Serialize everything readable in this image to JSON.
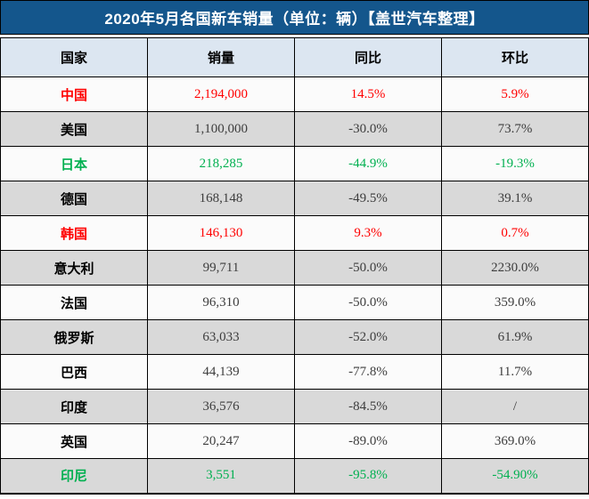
{
  "title": "2020年5月各国新车销量（单位：辆）【盖世汽车整理】",
  "colors": {
    "title_bar_bg": "#14568C",
    "title_text": "#FFFFFF",
    "header_bg": "#DCE6F1",
    "row_light_bg": "#FBFBFB",
    "row_alt_bg": "#D9D9D9",
    "highlight_red": "#FF0000",
    "highlight_green": "#00B050",
    "value_text": "#3D3D3D",
    "border": "#000000"
  },
  "chart_data": {
    "type": "table",
    "title": "2020年5月各国新车销量（单位：辆）【盖世汽车整理】",
    "columns": [
      "国家",
      "销量",
      "同比",
      "环比"
    ],
    "rows": [
      {
        "country": "中国",
        "sales": 2194000,
        "sales_display": "2,194,000",
        "yoy": "14.5%",
        "mom": "5.9%",
        "color": "red"
      },
      {
        "country": "美国",
        "sales": 1100000,
        "sales_display": "1,100,000",
        "yoy": "-30.0%",
        "mom": "73.7%",
        "color": "default"
      },
      {
        "country": "日本",
        "sales": 218285,
        "sales_display": "218,285",
        "yoy": "-44.9%",
        "mom": "-19.3%",
        "color": "green"
      },
      {
        "country": "德国",
        "sales": 168148,
        "sales_display": "168,148",
        "yoy": "-49.5%",
        "mom": "39.1%",
        "color": "default"
      },
      {
        "country": "韩国",
        "sales": 146130,
        "sales_display": "146,130",
        "yoy": "9.3%",
        "mom": "0.7%",
        "color": "red"
      },
      {
        "country": "意大利",
        "sales": 99711,
        "sales_display": "99,711",
        "yoy": "-50.0%",
        "mom": "2230.0%",
        "color": "default"
      },
      {
        "country": "法国",
        "sales": 96310,
        "sales_display": "96,310",
        "yoy": "-50.0%",
        "mom": "359.0%",
        "color": "default"
      },
      {
        "country": "俄罗斯",
        "sales": 63033,
        "sales_display": "63,033",
        "yoy": "-52.0%",
        "mom": "61.9%",
        "color": "default"
      },
      {
        "country": "巴西",
        "sales": 44139,
        "sales_display": "44,139",
        "yoy": "-77.8%",
        "mom": "11.7%",
        "color": "default"
      },
      {
        "country": "印度",
        "sales": 36576,
        "sales_display": "36,576",
        "yoy": "-84.5%",
        "mom": "/",
        "color": "default"
      },
      {
        "country": "英国",
        "sales": 20247,
        "sales_display": "20,247",
        "yoy": "-89.0%",
        "mom": "369.0%",
        "color": "default"
      },
      {
        "country": "印尼",
        "sales": 3551,
        "sales_display": "3,551",
        "yoy": "-95.8%",
        "mom": "-54.90%",
        "color": "green"
      }
    ]
  }
}
